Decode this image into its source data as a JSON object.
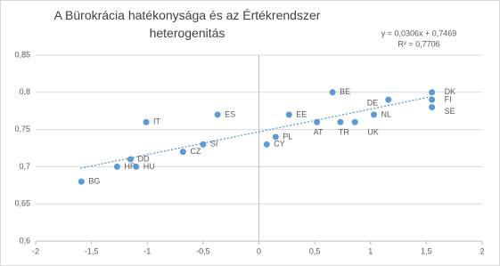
{
  "chart_data": {
    "type": "scatter",
    "title": "A Bürokrácia hatékonysága és az Értékrendszer heterogenitás",
    "categories": [
      "BG",
      "HR",
      "HU",
      "DD",
      "IT",
      "CZ",
      "SI",
      "ES",
      "CY",
      "PL",
      "EE",
      "AT",
      "BE",
      "TR",
      "UK",
      "NL",
      "DE",
      "DK",
      "FI",
      "SE"
    ],
    "x": [
      -1.59,
      -1.27,
      -1.1,
      -1.15,
      -1.01,
      -0.68,
      -0.5,
      -0.37,
      0.07,
      0.15,
      0.27,
      0.52,
      0.66,
      0.73,
      0.86,
      1.03,
      1.16,
      1.55,
      1.55,
      1.55
    ],
    "values": [
      0.68,
      0.7,
      0.7,
      0.71,
      0.76,
      0.72,
      0.73,
      0.77,
      0.73,
      0.74,
      0.77,
      0.76,
      0.8,
      0.76,
      0.76,
      0.77,
      0.79,
      0.8,
      0.79,
      0.78
    ],
    "color": "#5b9bd5",
    "trendline": {
      "slope": 0.0306,
      "intercept": 0.7469,
      "x": [
        -1.6,
        1.55
      ],
      "equation": "y = 0,0306x + 0,7469",
      "r2": "R² = 0,7706"
    },
    "xlim": [
      -2,
      2
    ],
    "xticks": [
      {
        "value": -2,
        "label": "-2"
      },
      {
        "value": -1.5,
        "label": "-1,5"
      },
      {
        "value": -1,
        "label": "-1"
      },
      {
        "value": -0.5,
        "label": "-0,5"
      },
      {
        "value": 0,
        "label": "0"
      },
      {
        "value": 0.5,
        "label": "0,5"
      },
      {
        "value": 1,
        "label": "1"
      },
      {
        "value": 1.5,
        "label": "1,5"
      },
      {
        "value": 2,
        "label": "2"
      }
    ],
    "ylim": [
      0.6,
      0.85
    ],
    "yticks": [
      {
        "value": 0.6,
        "label": "0,6"
      },
      {
        "value": 0.65,
        "label": "0,65"
      },
      {
        "value": 0.7,
        "label": "0,7"
      },
      {
        "value": 0.75,
        "label": "0,75"
      },
      {
        "value": 0.8,
        "label": "0,8"
      },
      {
        "value": 0.85,
        "label": "0,85"
      }
    ],
    "grid": true
  }
}
